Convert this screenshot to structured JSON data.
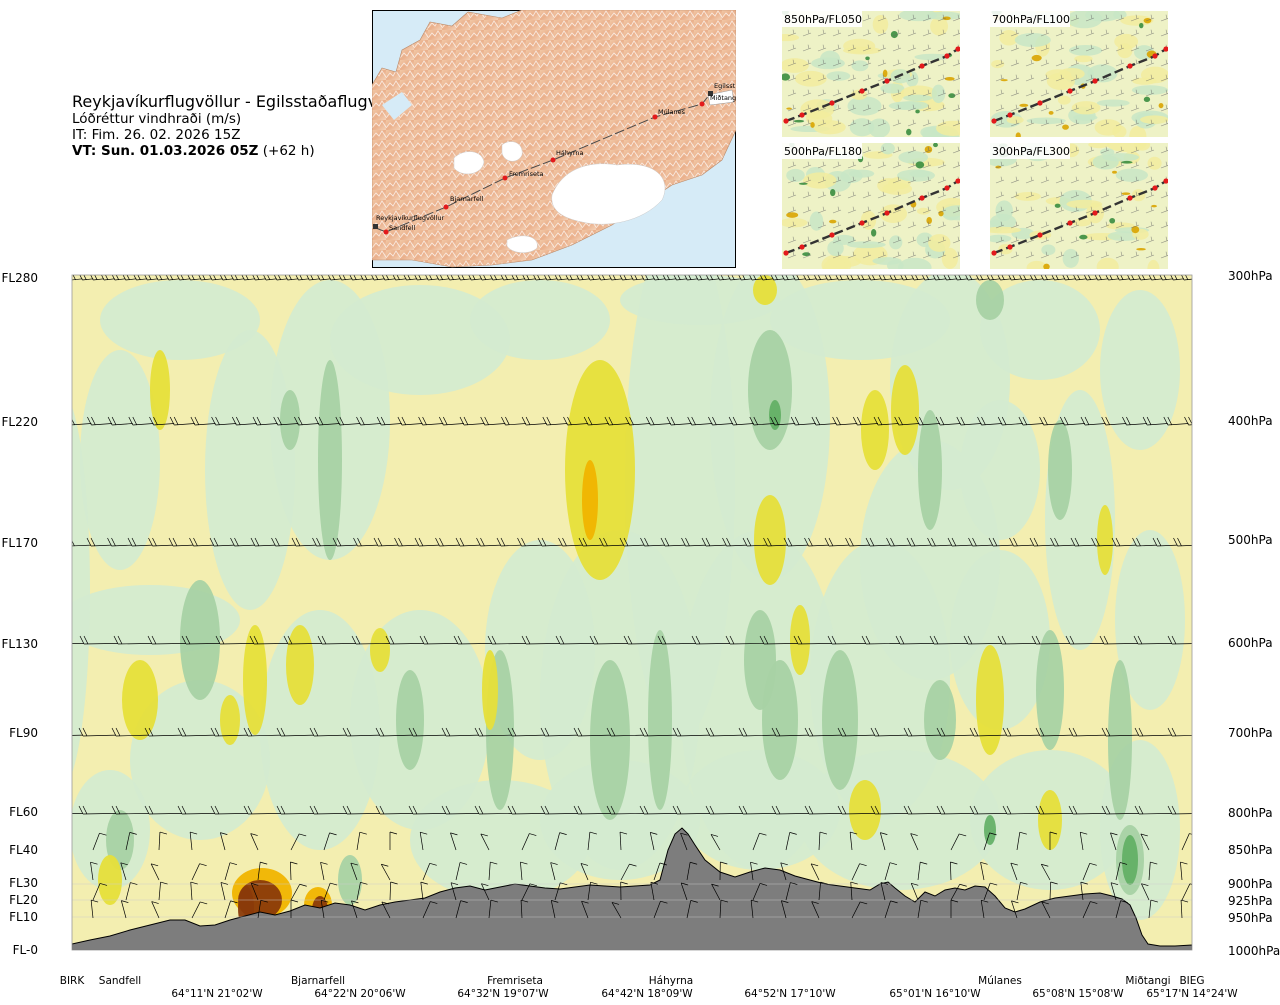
{
  "header": {
    "route": "Reykjavíkurflugvöllur - Egilsstaðaflugvöllur",
    "parameter": "Lóðréttur vindhraði (m/s)",
    "issue_time": "IT: Fim. 26. 02. 2026 15Z",
    "valid_label": "VT: Sun. 01.03.2026 05Z",
    "valid_offset": " (+62 h)"
  },
  "route_map": {
    "waypoints": [
      {
        "label": "Reykjavíkurflugvöllur"
      },
      {
        "label": "Sandfell"
      },
      {
        "label": "Bjarnarfell"
      },
      {
        "label": "Fremriseta"
      },
      {
        "label": "Háhyrna"
      },
      {
        "label": "Múlanes"
      },
      {
        "label": "Miðtangi"
      },
      {
        "label": "Egilsst"
      }
    ]
  },
  "thumbnails": [
    {
      "label": "850hPa/FL050"
    },
    {
      "label": "700hPa/FL100"
    },
    {
      "label": "500hPa/FL180"
    },
    {
      "label": "300hPa/FL300"
    }
  ],
  "levels_left": [
    "FL280",
    "FL220",
    "FL170",
    "FL130",
    "FL90",
    "FL60",
    "FL40",
    "FL30",
    "FL20",
    "FL10",
    "FL-0"
  ],
  "levels_right": [
    "300hPa",
    "400hPa",
    "500hPa",
    "600hPa",
    "700hPa",
    "800hPa",
    "850hPa",
    "900hPa",
    "925hPa",
    "950hPa",
    "1000hPa"
  ],
  "x_points": [
    "BIRK",
    "Sandfell",
    "Bjarnarfell",
    "Fremriseta",
    "Háhyrna",
    "Múlanes",
    "Miðtangi",
    "BIEG"
  ],
  "x_coords": [
    "64°11'N 21°02'W",
    "64°22'N 20°06'W",
    "64°32'N 19°07'W",
    "64°42'N 18°09'W",
    "64°52'N 17°10'W",
    "65°01'N 16°10'W",
    "65°08'N 15°08'W",
    "65°17'N 14°24'W"
  ],
  "colors": {
    "updraft_weak": "#f3eeb0",
    "updraft_mid": "#e6df3a",
    "updraft_strong": "#f0b400",
    "updraft_very_strong": "#8a3a0a",
    "downdraft_weak": "#d4ebd0",
    "downdraft_mid": "#a8d2a4",
    "downdraft_strong": "#5fae63",
    "terrain": "#7d7d7d",
    "route_line": "#4a4a4a",
    "waypoint": "#e31a1c"
  }
}
